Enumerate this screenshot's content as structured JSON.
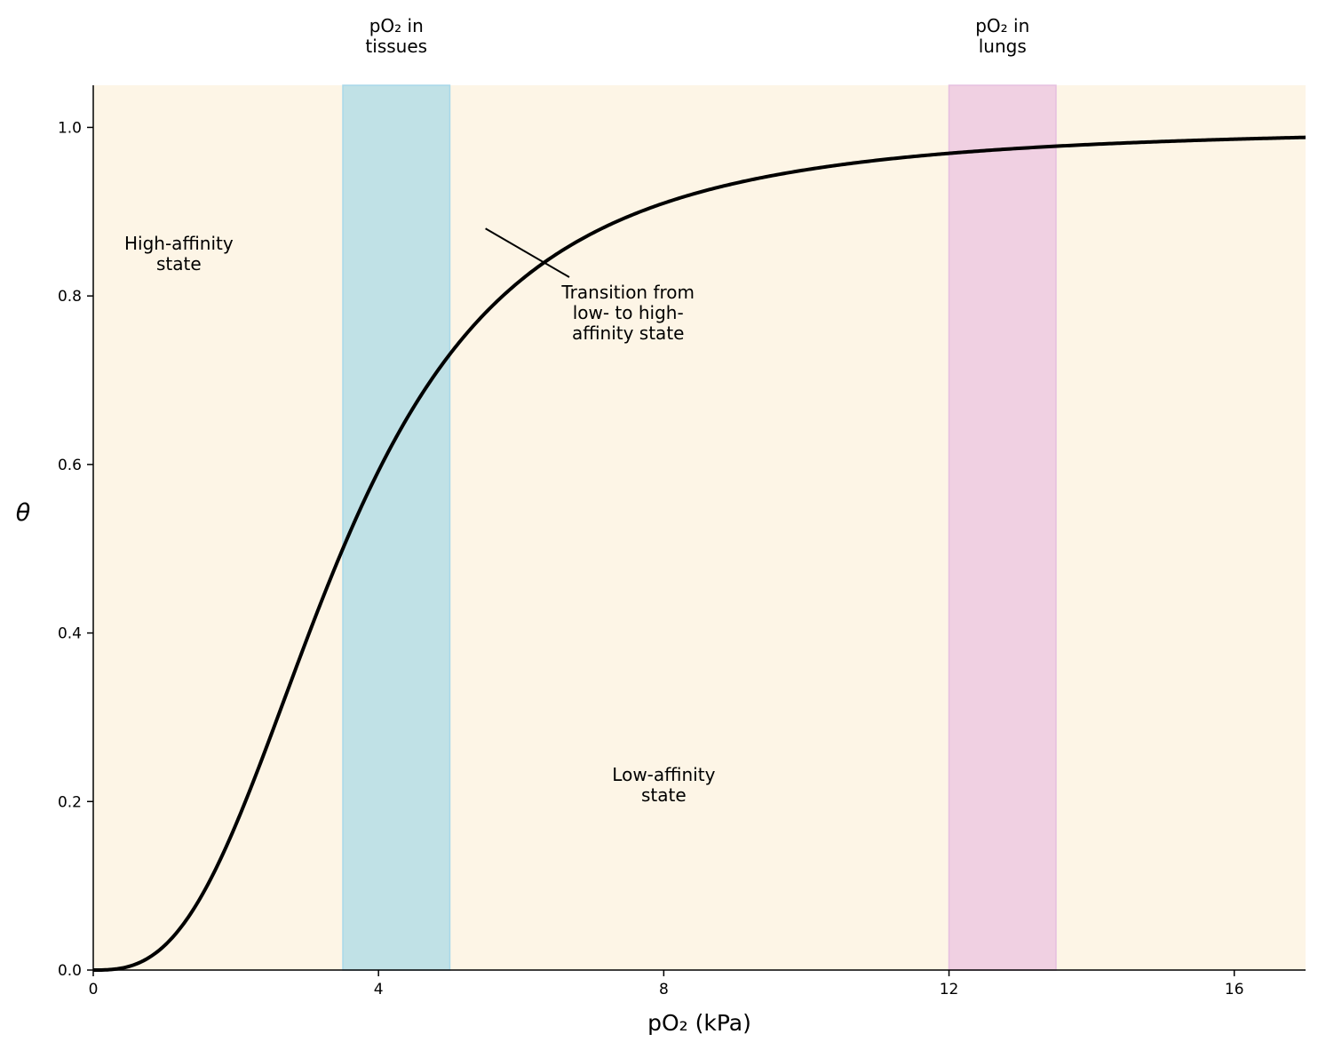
{
  "chart_data": {
    "type": "line",
    "title": "",
    "xlabel": "pO₂ (kPa)",
    "ylabel": "θ",
    "xlim": [
      0,
      17
    ],
    "ylim": [
      0,
      1.05
    ],
    "xticks": [
      0,
      4,
      8,
      12,
      16
    ],
    "xtick_labels": [
      "0",
      "4",
      "8",
      "12",
      "16"
    ],
    "yticks": [
      0,
      0.2,
      0.4,
      0.6,
      0.8,
      1.0
    ],
    "ytick_labels": [
      "0.0",
      "0.2",
      "0.4",
      "0.6",
      "0.8",
      "1.0"
    ],
    "grid": false,
    "background_color": "#fdf5e6",
    "series": [
      {
        "curve": "hill",
        "p50": 3.5,
        "hill_coefficient": 2.8,
        "x_range": [
          0,
          17
        ],
        "color": "#000000"
      }
    ],
    "bands": [
      {
        "label_lines": [
          "pO₂ in",
          "tissues"
        ],
        "x_start": 3.5,
        "x_end": 5.0,
        "color": "#c0e1e6",
        "edge": "#a8d8ea"
      },
      {
        "label_lines": [
          "pO₂ in",
          "lungs"
        ],
        "x_start": 12.0,
        "x_end": 13.5,
        "color": "#f0d0e2",
        "edge": "#e6bfe0"
      }
    ],
    "annotations": [
      {
        "lines": [
          "High-affinity",
          "state"
        ],
        "x": 1.2,
        "y": 0.85
      },
      {
        "lines": [
          "Low-affinity",
          "state"
        ],
        "x": 8.0,
        "y": 0.22
      },
      {
        "lines": [
          "Transition from",
          "low- to high-",
          "affinity state"
        ],
        "x": 7.5,
        "y": 0.78,
        "arrow_to": [
          5.5,
          0.88
        ]
      }
    ]
  }
}
